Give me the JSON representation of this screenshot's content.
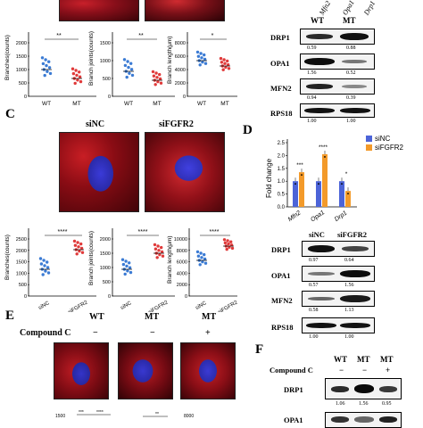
{
  "panels": {
    "c": "C",
    "d": "D",
    "e": "E",
    "f": "F"
  },
  "panel_a": {
    "charts": [
      {
        "ylabel": "Branches(counts)",
        "yticks": [
          "0",
          "500",
          "1000",
          "1500",
          "2000"
        ],
        "sig": "**",
        "categories": [
          "WT",
          "MT"
        ]
      },
      {
        "ylabel": "Branch joints(counts)",
        "yticks": [
          "0",
          "500",
          "1000",
          "1500"
        ],
        "sig": "**",
        "categories": [
          "WT",
          "MT"
        ]
      },
      {
        "ylabel": "Branch length(μm)",
        "yticks": [
          "0",
          "2000",
          "4000",
          "6000",
          "8000"
        ],
        "sig": "*",
        "categories": [
          "WT",
          "MT"
        ]
      }
    ]
  },
  "panel_b": {
    "genes": [
      "Mfn2",
      "Opa1",
      "Drp1"
    ],
    "groups": [
      "WT",
      "MT"
    ],
    "rows": [
      {
        "label": "DRP1",
        "q": [
          "0.59",
          "0.88"
        ]
      },
      {
        "label": "OPA1",
        "q": [
          "1.56",
          "0.52"
        ]
      },
      {
        "label": "MFN2",
        "q": [
          "0.94",
          "0.39"
        ]
      },
      {
        "label": "RPS18",
        "q": [
          "1.00",
          "1.00"
        ]
      }
    ]
  },
  "panel_c": {
    "titles": [
      "siNC",
      "siFGFR2"
    ],
    "charts": [
      {
        "ylabel": "Branches(counts)",
        "yticks": [
          "0",
          "500",
          "1000",
          "1500",
          "2000",
          "2500"
        ],
        "sig": "****",
        "categories": [
          "siNC",
          "siFGFR2"
        ]
      },
      {
        "ylabel": "Branch joints(counts)",
        "yticks": [
          "0",
          "500",
          "1000",
          "1500",
          "2000"
        ],
        "sig": "****",
        "categories": [
          "siNC",
          "siFGFR2"
        ]
      },
      {
        "ylabel": "Branch length(μm)",
        "yticks": [
          "0",
          "2000",
          "4000",
          "6000",
          "8000",
          "10000"
        ],
        "sig": "****",
        "categories": [
          "siNC",
          "siFGFR2"
        ]
      }
    ]
  },
  "panel_d": {
    "chart_data": {
      "type": "bar",
      "categories": [
        "Mfn2",
        "Opa1",
        "Drp1"
      ],
      "series": [
        {
          "name": "siNC",
          "values": [
            1.0,
            1.0,
            1.0
          ],
          "color": "#4c64d8"
        },
        {
          "name": "siFGFR2",
          "values": [
            1.35,
            2.05,
            0.62
          ],
          "color": "#f39a2a"
        }
      ],
      "ylabel": "Fold change",
      "yticks": [
        "0.0",
        "0.5",
        "1.0",
        "1.5",
        "2.0",
        "2.5"
      ],
      "ylim": [
        0,
        2.5
      ],
      "sig": [
        "***",
        "****",
        "*"
      ],
      "legend": "top-right"
    },
    "groups": [
      "siNC",
      "siFGFR2"
    ],
    "rows": [
      {
        "label": "DRP1",
        "q": [
          "0.97",
          "0.64"
        ]
      },
      {
        "label": "OPA1",
        "q": [
          "0.57",
          "1.56"
        ]
      },
      {
        "label": "MFN2",
        "q": [
          "0.58",
          "1.13"
        ]
      },
      {
        "label": "RPS18",
        "q": [
          "1.00",
          "1.00"
        ]
      }
    ]
  },
  "panel_e": {
    "headers": [
      "WT",
      "MT",
      "MT"
    ],
    "compound_label": "Compound C",
    "compound_marks": [
      "−",
      "−",
      "+"
    ]
  },
  "panel_f": {
    "headers": [
      "WT",
      "MT",
      "MT"
    ],
    "compound_label": "Compound C",
    "compound_marks": [
      "−",
      "−",
      "+"
    ],
    "rows": [
      {
        "label": "DRP1",
        "q": [
          "1.06",
          "1.56",
          "0.95"
        ]
      },
      {
        "label": "OPA1",
        "q": []
      }
    ]
  }
}
